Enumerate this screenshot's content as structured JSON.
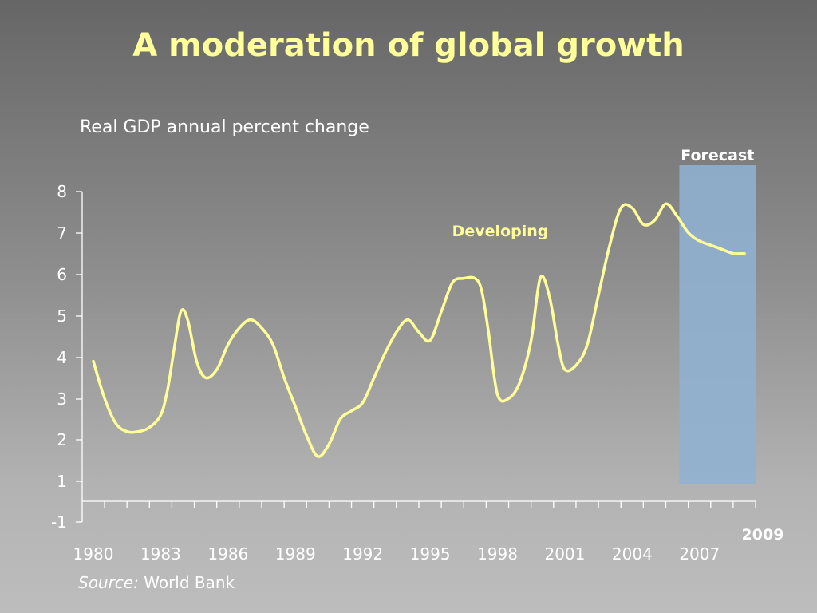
{
  "slide": {
    "title": "A moderation of global growth",
    "source_prefix": "Source:",
    "source_name": " World Bank"
  },
  "chart_data": {
    "type": "line",
    "title": "A moderation of global growth",
    "ylabel": "Real GDP annual percent change",
    "xlabel": "",
    "xlim": [
      1980,
      2009
    ],
    "y_ticks": [
      "8",
      "7",
      "6",
      "5",
      "4",
      "3",
      "2",
      "1",
      "-1"
    ],
    "x_ticks": [
      "1980",
      "1983",
      "1986",
      "1989",
      "1992",
      "1995",
      "1998",
      "2001",
      "2004",
      "2007"
    ],
    "end_label": "2009",
    "forecast": {
      "label": "Forecast",
      "start": 2006.1,
      "end": 2009.5,
      "color": "#8fb0d2"
    },
    "grid": false,
    "series": [
      {
        "name": "Developing",
        "color": "#ffff99",
        "x": [
          1980,
          1980.5,
          1981,
          1981.5,
          1982,
          1982.5,
          1983,
          1983.3,
          1983.6,
          1983.9,
          1984.2,
          1984.6,
          1985,
          1985.5,
          1986,
          1986.5,
          1987,
          1987.5,
          1988,
          1988.5,
          1989,
          1989.5,
          1990,
          1990.5,
          1991,
          1991.5,
          1992,
          1992.5,
          1993,
          1993.5,
          1994,
          1994.5,
          1995,
          1995.5,
          1996,
          1996.5,
          1997,
          1997.3,
          1997.6,
          1998,
          1998.5,
          1999,
          1999.5,
          1999.9,
          2000.3,
          2000.7,
          2001,
          2001.5,
          2002,
          2002.5,
          2003,
          2003.5,
          2004,
          2004.5,
          2005,
          2005.5,
          2006,
          2006.5,
          2007,
          2007.5,
          2008,
          2008.5,
          2009
        ],
        "y": [
          3.9,
          3.0,
          2.4,
          2.2,
          2.2,
          2.3,
          2.6,
          3.2,
          4.2,
          5.1,
          4.9,
          3.9,
          3.5,
          3.7,
          4.3,
          4.7,
          4.9,
          4.7,
          4.3,
          3.5,
          2.8,
          2.1,
          1.6,
          1.9,
          2.5,
          2.7,
          2.9,
          3.5,
          4.1,
          4.6,
          4.9,
          4.6,
          4.4,
          5.1,
          5.8,
          5.9,
          5.9,
          5.6,
          4.6,
          3.1,
          3.0,
          3.4,
          4.4,
          5.9,
          5.5,
          4.3,
          3.7,
          3.8,
          4.3,
          5.5,
          6.7,
          7.6,
          7.6,
          7.2,
          7.3,
          7.7,
          7.4,
          7.0,
          6.8,
          6.7,
          6.6,
          6.5,
          6.5
        ]
      }
    ]
  }
}
